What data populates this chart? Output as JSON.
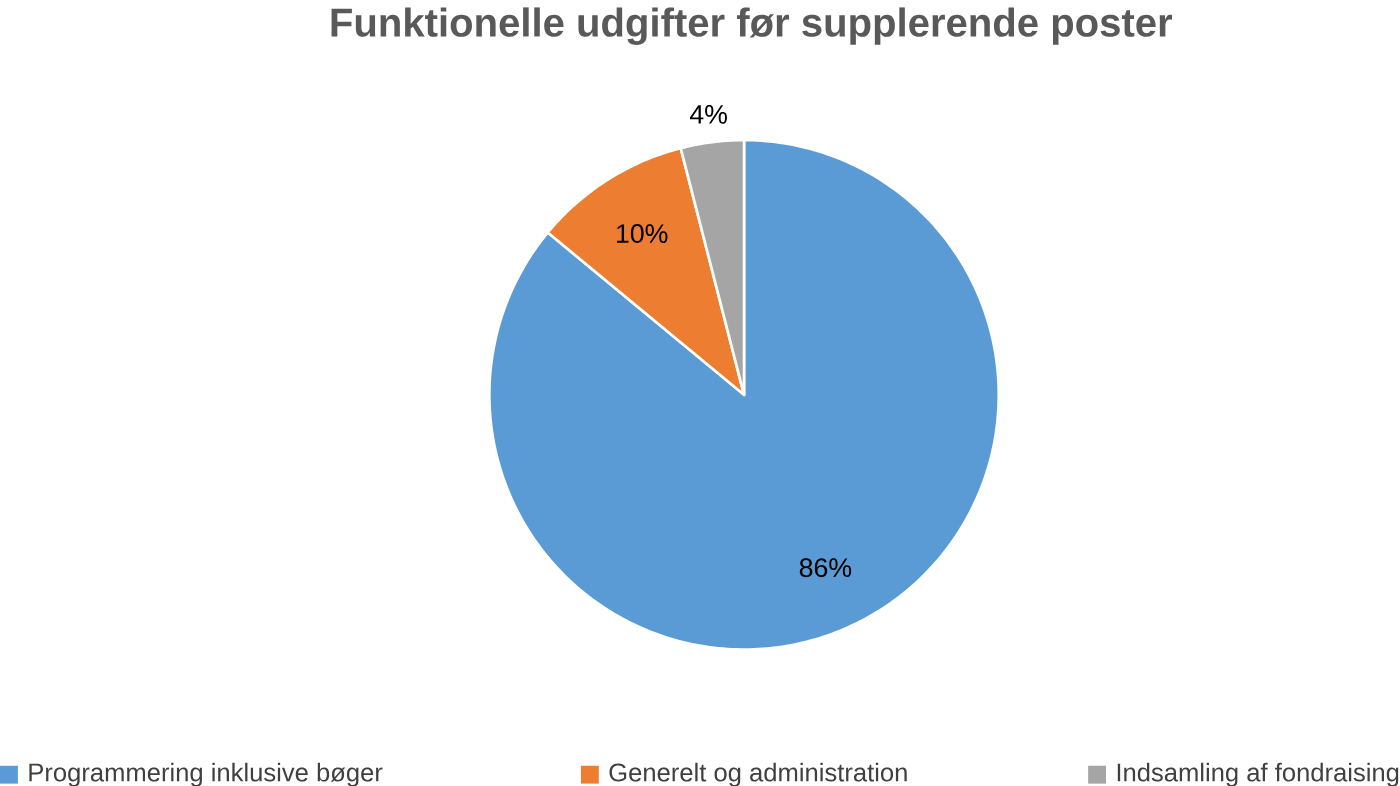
{
  "chart_data": {
    "type": "pie",
    "title": "Funktionelle udgifter før supplerende poster",
    "categories": [
      "Programmering inklusive bøger",
      "Generelt og administration",
      "Indsamling af fondraising"
    ],
    "values": [
      86,
      10,
      4
    ],
    "colors": [
      "#5b9bd5",
      "#ed7d31",
      "#a5a5a5"
    ],
    "value_labels": [
      "86%",
      "10%",
      "4%"
    ],
    "legend": "bottom"
  }
}
